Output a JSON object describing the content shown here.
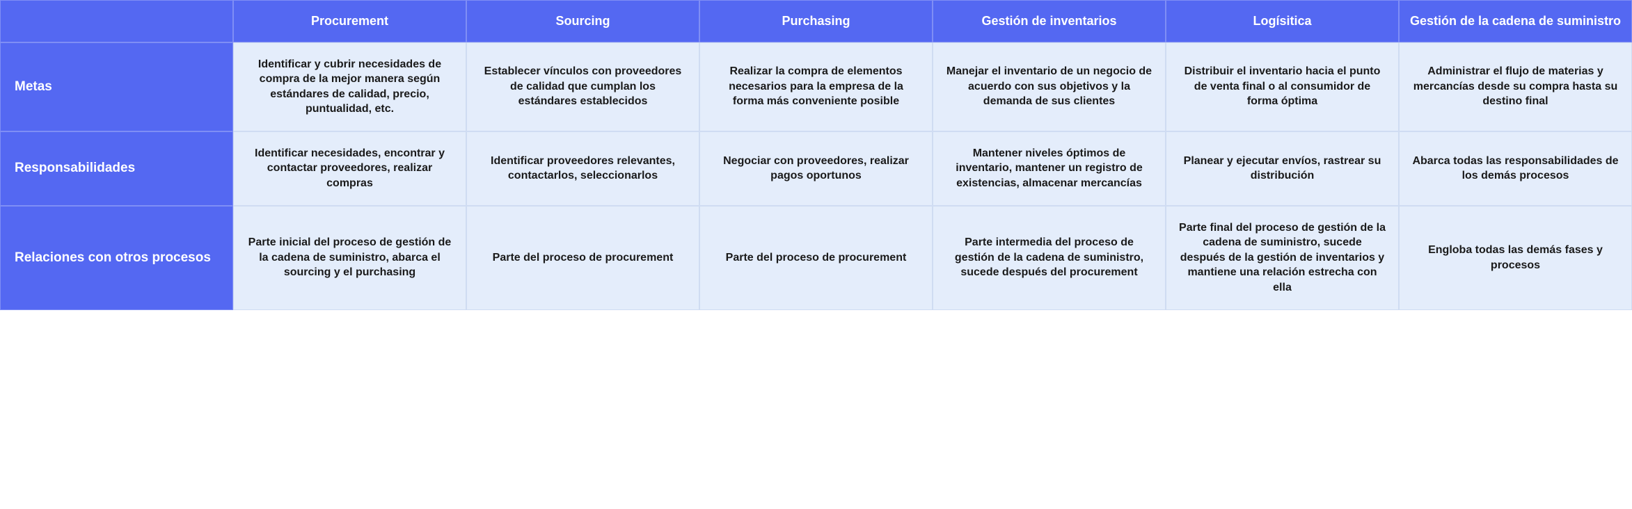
{
  "table": {
    "type": "table",
    "header_bg_color": "#5468f2",
    "header_text_color": "#ffffff",
    "cell_bg_color": "#e4edfb",
    "cell_text_color": "#1a1a1a",
    "cell_border_color": "#cfdcf2",
    "header_border_color": "rgba(255,255,255,0.25)",
    "header_fontsize": 18,
    "row_header_fontsize": 19,
    "cell_fontsize": 16,
    "font_weight": 700,
    "column_count": 7,
    "row_count": 4,
    "columns": [
      "",
      "Procurement",
      "Sourcing",
      "Purchasing",
      "Gestión de inventarios",
      "Logísitica",
      "Gestión de la cadena de suministro"
    ],
    "row_headers": [
      "Metas",
      "Responsabilidades",
      "Relaciones con otros procesos"
    ],
    "rows": [
      [
        "Identificar y cubrir necesidades de compra de la mejor manera según estándares de calidad, precio, puntualidad, etc.",
        "Establecer vínculos con proveedores de calidad que cumplan los estándares establecidos",
        "Realizar la compra de elementos necesarios para la empresa de la forma más conveniente posible",
        "Manejar el inventario de un negocio de acuerdo con sus objetivos y la demanda de sus clientes",
        "Distribuir el inventario hacia el punto de venta final o al consumidor de forma óptima",
        "Administrar el flujo de materias y mercancías desde su compra hasta su destino final"
      ],
      [
        "Identificar necesidades, encontrar y contactar proveedores, realizar compras",
        "Identificar proveedores relevantes, contactarlos, seleccionarlos",
        "Negociar con proveedores, realizar pagos oportunos",
        "Mantener niveles óptimos de inventario, mantener un registro de existencias, almacenar mercancías",
        "Planear y ejecutar envíos, rastrear su distribución",
        "Abarca todas las responsabilidades de los demás procesos"
      ],
      [
        "Parte inicial del proceso de gestión de la cadena de suministro, abarca el sourcing y el purchasing",
        "Parte del proceso de procurement",
        "Parte del proceso de procurement",
        "Parte intermedia del proceso de gestión de la cadena de suministro, sucede después del procurement",
        "Parte final del proceso de gestión de la cadena de suministro, sucede después de la gestión de inventarios y mantiene una relación estrecha con ella",
        "Engloba todas las demás fases y procesos"
      ]
    ]
  }
}
